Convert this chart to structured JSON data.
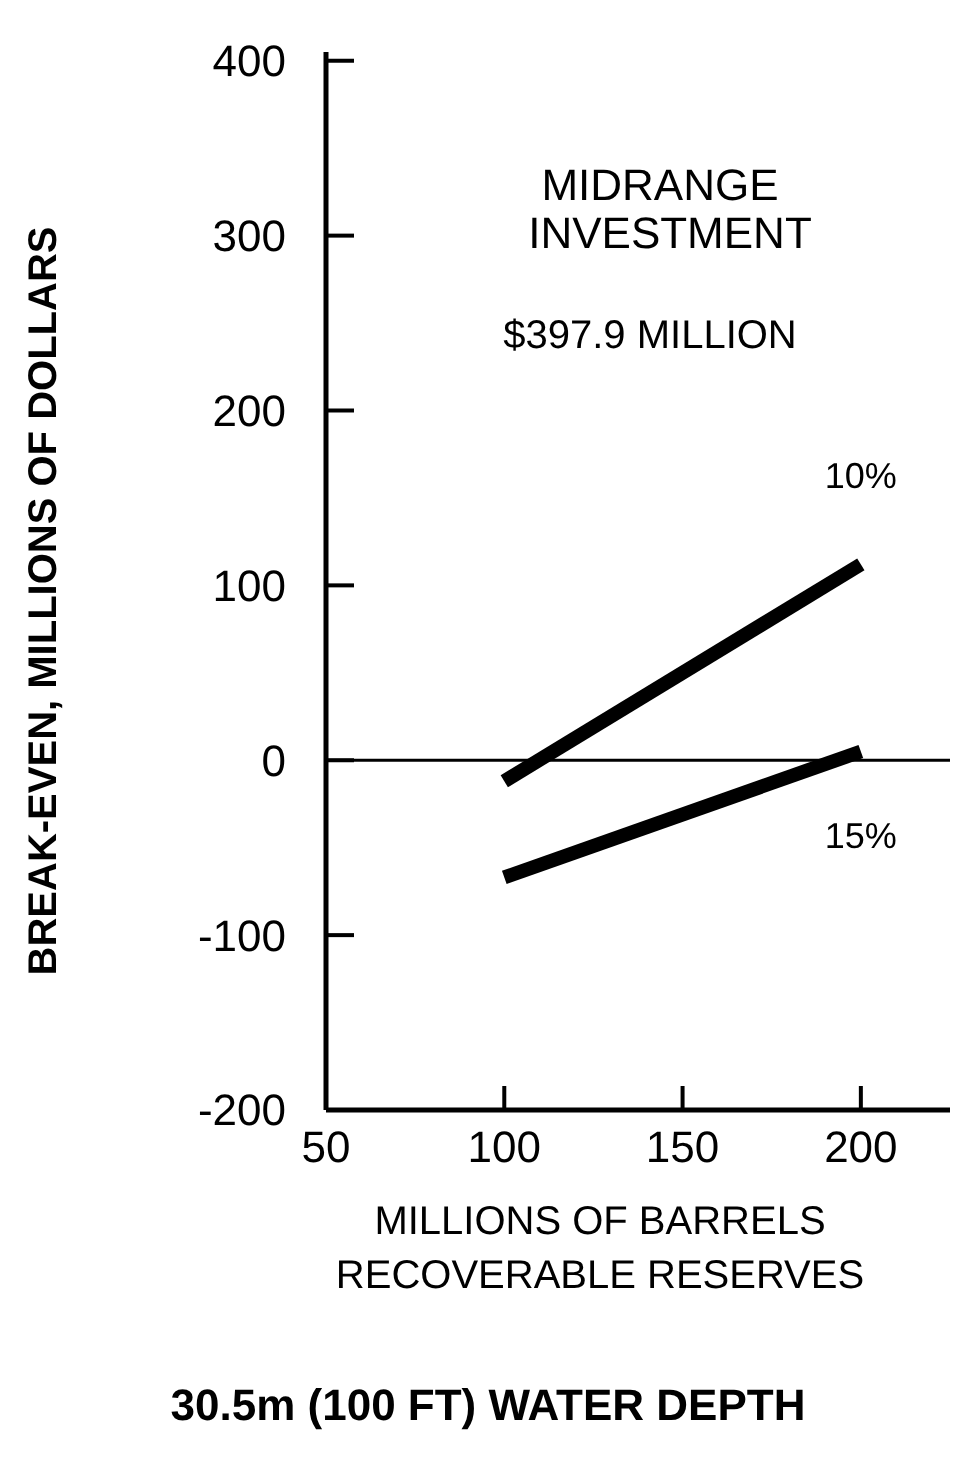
{
  "chart_data": {
    "type": "line",
    "title": "30.5m (100 FT) WATER DEPTH",
    "xlabel": "MILLIONS OF BARRELS RECOVERABLE RESERVES",
    "ylabel": "BREAK-EVEN, MILLIONS OF DOLLARS",
    "annotations": [
      "MIDRANGE INVESTMENT",
      "$397.9 MILLION"
    ],
    "x": [
      100,
      200
    ],
    "series": [
      {
        "name": "10%",
        "color": "#000000",
        "values": [
          -12,
          112
        ]
      },
      {
        "name": "15%",
        "color": "#000000",
        "values": [
          -67,
          5
        ]
      }
    ],
    "xlim": [
      50,
      225
    ],
    "xticks": [
      50,
      100,
      150,
      200
    ],
    "ylim": [
      -200,
      405
    ],
    "yticks": [
      -200,
      -100,
      0,
      100,
      200,
      300,
      400
    ],
    "ref_lines": [
      {
        "axis": "y",
        "value": 0,
        "color": "#000000"
      }
    ],
    "marker": "none",
    "line_style": "solid"
  }
}
